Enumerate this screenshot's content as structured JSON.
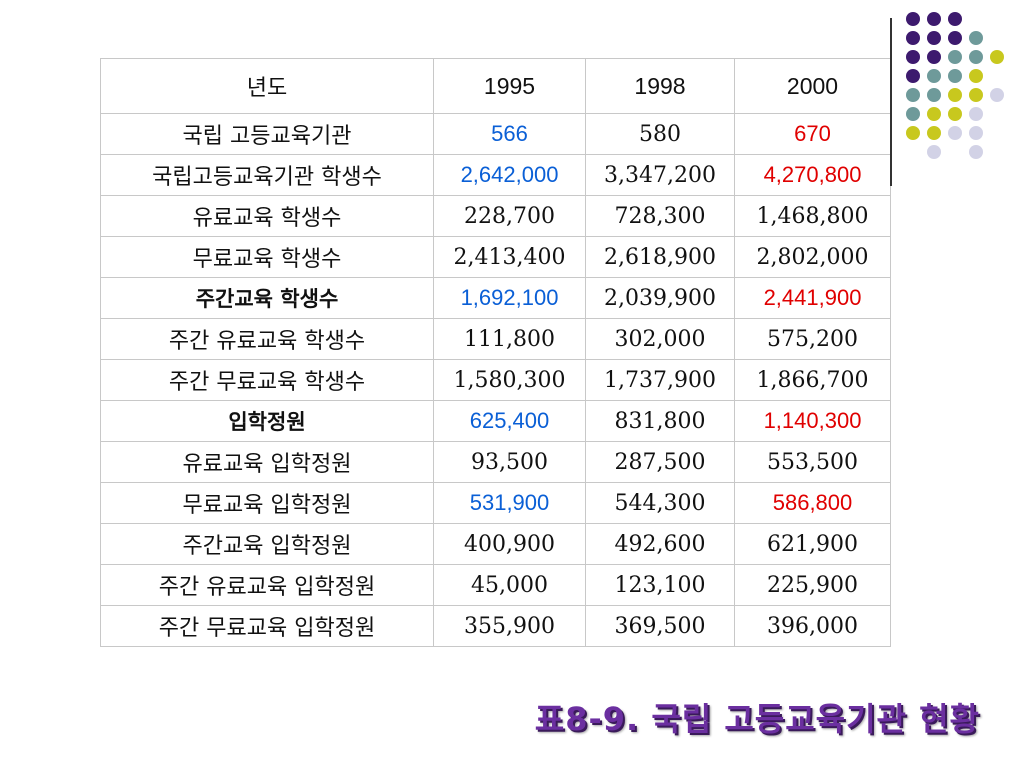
{
  "table": {
    "header": {
      "label": "년도",
      "years": [
        "1995",
        "1998",
        "2000"
      ]
    },
    "rows": [
      {
        "label": "국립 고등교육기관",
        "values": [
          "566",
          "580",
          "670"
        ],
        "bold": false,
        "highlight": true
      },
      {
        "label": "국립고등교육기관 학생수",
        "values": [
          "2,642,000",
          "3,347,200",
          "4,270,800"
        ],
        "bold": false,
        "highlight": true
      },
      {
        "label": "유료교육 학생수",
        "values": [
          "228,700",
          "728,300",
          "1,468,800"
        ],
        "bold": false,
        "highlight": false
      },
      {
        "label": "무료교육 학생수",
        "values": [
          "2,413,400",
          "2,618,900",
          "2,802,000"
        ],
        "bold": false,
        "highlight": false
      },
      {
        "label": "주간교육 학생수",
        "values": [
          "1,692,100",
          "2,039,900",
          "2,441,900"
        ],
        "bold": true,
        "highlight": true
      },
      {
        "label": "주간 유료교육 학생수",
        "values": [
          "111,800",
          "302,000",
          "575,200"
        ],
        "bold": false,
        "highlight": false
      },
      {
        "label": "주간 무료교육 학생수",
        "values": [
          "1,580,300",
          "1,737,900",
          "1,866,700"
        ],
        "bold": false,
        "highlight": false
      },
      {
        "label": "입학정원",
        "values": [
          "625,400",
          "831,800",
          "1,140,300"
        ],
        "bold": true,
        "highlight": true
      },
      {
        "label": "유료교육 입학정원",
        "values": [
          "93,500",
          "287,500",
          "553,500"
        ],
        "bold": false,
        "highlight": false
      },
      {
        "label": "무료교육 입학정원",
        "values": [
          "531,900",
          "544,300",
          "586,800"
        ],
        "bold": false,
        "highlight": true
      },
      {
        "label": "주간교육 입학정원",
        "values": [
          "400,900",
          "492,600",
          "621,900"
        ],
        "bold": false,
        "highlight": false
      },
      {
        "label": "주간 유료교육 입학정원",
        "values": [
          "45,000",
          "123,100",
          "225,900"
        ],
        "bold": false,
        "highlight": false
      },
      {
        "label": "주간 무료교육 입학정원",
        "values": [
          "355,900",
          "369,500",
          "396,000"
        ],
        "bold": false,
        "highlight": false
      }
    ]
  },
  "caption": "표8-9. 국립 고등교육기관 현황",
  "colors": {
    "highlight_1995": "#0a5fd6",
    "highlight_2000": "#e00000",
    "caption": "#6b2fa0",
    "dot_purple": "#3d1a6e",
    "dot_teal": "#6e9a9a",
    "dot_yellow": "#c8c81e",
    "dot_lavender": "#d2d2e6"
  },
  "decoration": {
    "dot_grid": [
      [
        "purple",
        "purple",
        "purple",
        "",
        ""
      ],
      [
        "purple",
        "purple",
        "purple",
        "teal",
        ""
      ],
      [
        "purple",
        "purple",
        "teal",
        "teal",
        "yellow"
      ],
      [
        "purple",
        "teal",
        "teal",
        "yellow",
        ""
      ],
      [
        "teal",
        "teal",
        "yellow",
        "yellow",
        "lavender"
      ],
      [
        "teal",
        "yellow",
        "yellow",
        "lavender",
        ""
      ],
      [
        "yellow",
        "yellow",
        "lavender",
        "lavender",
        ""
      ],
      [
        "",
        "lavender",
        "",
        "lavender",
        ""
      ]
    ]
  }
}
